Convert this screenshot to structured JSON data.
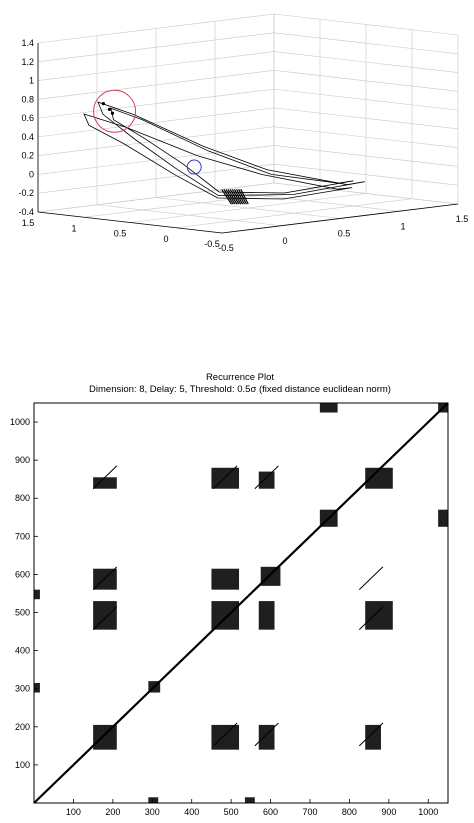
{
  "chart_data": [
    {
      "type": "line",
      "projection": "3d",
      "title": "",
      "xlabel": "",
      "ylabel": "",
      "zlabel": "",
      "xlim": [
        -0.5,
        1.5
      ],
      "ylim": [
        -0.5,
        1.5
      ],
      "zlim": [
        -0.4,
        1.4
      ],
      "x_ticks": [
        "-0.5",
        "0",
        "0.5",
        "1",
        "1.5"
      ],
      "y_ticks": [
        "-0.5",
        "0",
        "0.5",
        "1",
        "1.5"
      ],
      "z_ticks": [
        "-0.4",
        "-0.2",
        "0",
        "0.2",
        "0.4",
        "0.6",
        "0.8",
        "1",
        "1.2",
        "1.4"
      ],
      "grid": true,
      "line_color": "#000000",
      "annotations": [
        {
          "shape": "circle",
          "color": "#d0405a",
          "location": "upper-left loop"
        },
        {
          "shape": "circle",
          "color": "#3a3ad0",
          "location": "trajectory crossing near z=0"
        }
      ]
    },
    {
      "type": "heatmap",
      "title": "Recurrence Plot",
      "subtitle": "Dimension: 8,  Delay: 5,  Threshold: 0.5σ (fixed distance euclidean norm)",
      "xlabel": "",
      "ylabel": "",
      "xlim": [
        0,
        1050
      ],
      "ylim": [
        0,
        1050
      ],
      "x_ticks": [
        "100",
        "200",
        "300",
        "400",
        "500",
        "600",
        "700",
        "800",
        "900",
        "1000"
      ],
      "y_ticks": [
        "100",
        "200",
        "300",
        "400",
        "500",
        "600",
        "700",
        "800",
        "900",
        "1000"
      ],
      "color": "#000000",
      "diagonal": [
        0,
        1050
      ],
      "recurrent_blocks": [
        {
          "x": [
            150,
            210
          ],
          "y": [
            140,
            205
          ]
        },
        {
          "x": [
            150,
            210
          ],
          "y": [
            455,
            530
          ]
        },
        {
          "x": [
            150,
            210
          ],
          "y": [
            560,
            615
          ]
        },
        {
          "x": [
            150,
            210
          ],
          "y": [
            825,
            855
          ]
        },
        {
          "x": [
            450,
            520
          ],
          "y": [
            140,
            205
          ]
        },
        {
          "x": [
            450,
            520
          ],
          "y": [
            455,
            530
          ]
        },
        {
          "x": [
            450,
            520
          ],
          "y": [
            560,
            615
          ]
        },
        {
          "x": [
            450,
            520
          ],
          "y": [
            825,
            880
          ]
        },
        {
          "x": [
            840,
            910
          ],
          "y": [
            455,
            530
          ]
        },
        {
          "x": [
            840,
            910
          ],
          "y": [
            825,
            880
          ]
        },
        {
          "x": [
            840,
            880
          ],
          "y": [
            140,
            205
          ]
        },
        {
          "x": [
            570,
            610
          ],
          "y": [
            140,
            205
          ]
        },
        {
          "x": [
            570,
            610
          ],
          "y": [
            455,
            530
          ]
        },
        {
          "x": [
            570,
            610
          ],
          "y": [
            825,
            870
          ]
        },
        {
          "x": [
            725,
            770
          ],
          "y": [
            725,
            770
          ]
        },
        {
          "x": [
            725,
            770
          ],
          "y": [
            1025,
            1050
          ]
        },
        {
          "x": [
            1025,
            1050
          ],
          "y": [
            725,
            770
          ]
        },
        {
          "x": [
            1025,
            1050
          ],
          "y": [
            1025,
            1050
          ]
        },
        {
          "x": [
            0,
            15
          ],
          "y": [
            290,
            315
          ]
        },
        {
          "x": [
            0,
            15
          ],
          "y": [
            535,
            560
          ]
        },
        {
          "x": [
            290,
            315
          ],
          "y": [
            0,
            15
          ]
        },
        {
          "x": [
            535,
            560
          ],
          "y": [
            0,
            15
          ]
        },
        {
          "x": [
            290,
            320
          ],
          "y": [
            290,
            320
          ]
        },
        {
          "x": [
            575,
            625
          ],
          "y": [
            570,
            620
          ]
        }
      ]
    }
  ]
}
